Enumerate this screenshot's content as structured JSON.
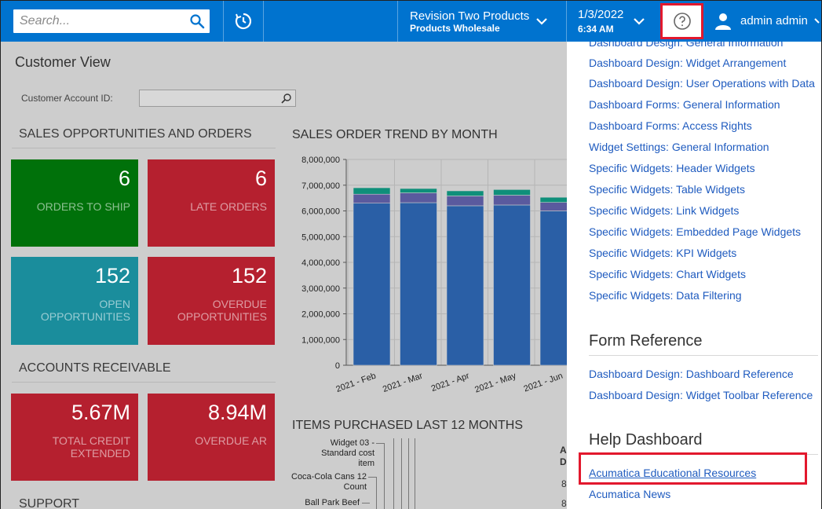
{
  "header": {
    "search_placeholder": "Search...",
    "company_name": "Revision Two Products",
    "branch_name": "Products Wholesale",
    "date": "1/3/2022",
    "time": "6:34 AM",
    "user_name": "admin admin"
  },
  "main": {
    "page_title": "Customer View",
    "account_label": "Customer Account ID:",
    "sections": {
      "sales": "SALES OPPORTUNITIES AND ORDERS",
      "receivable": "ACCOUNTS RECEIVABLE",
      "support": "SUPPORT",
      "trend": "SALES ORDER TREND BY MONTH",
      "items": "ITEMS PURCHASED LAST 12 MONTHS"
    },
    "tiles": [
      {
        "value": "6",
        "label": "ORDERS TO SHIP"
      },
      {
        "value": "6",
        "label": "LATE ORDERS"
      },
      {
        "value": "152",
        "label": "OPEN OPPORTUNITIES"
      },
      {
        "value": "152",
        "label": "OVERDUE OPPORTUNITIES"
      },
      {
        "value": "5.67M",
        "label": "TOTAL CREDIT EXTENDED"
      },
      {
        "value": "8.94M",
        "label": "OVERDUE AR"
      }
    ],
    "items_labels": [
      "Widget 03 - Standard cost item",
      "Coca-Cola Cans 12 Count",
      "Ball Park Beef"
    ],
    "partial_col_a": "A",
    "partial_col_d": "D",
    "partial_digit": "8"
  },
  "chart_data": {
    "type": "bar",
    "stacked": true,
    "title": "SALES ORDER TREND BY MONTH",
    "categories": [
      "2021 - Feb",
      "2021 - Mar",
      "2021 - Apr",
      "2021 - May",
      "2021 - Jun"
    ],
    "series": [
      {
        "values": [
          6300000,
          6320000,
          6200000,
          6230000,
          6000000
        ],
        "color": "#2a5fa6"
      },
      {
        "values": [
          350000,
          380000,
          380000,
          380000,
          330000
        ],
        "color": "#5a5a9e"
      },
      {
        "values": [
          250000,
          170000,
          200000,
          220000,
          200000
        ],
        "color": "#0f8f7a"
      }
    ],
    "y_ticks": [
      "0",
      "1,000,000",
      "2,000,000",
      "3,000,000",
      "4,000,000",
      "5,000,000",
      "6,000,000",
      "7,000,000",
      "8,000,000"
    ],
    "ylim": [
      0,
      8000000
    ],
    "grid": true
  },
  "help_panel": {
    "top_links": [
      "Dashboard Design: General Information",
      "Dashboard Design: Widget Arrangement",
      "Dashboard Design: User Operations with Data",
      "Dashboard Forms: General Information",
      "Dashboard Forms: Access Rights",
      "Widget Settings: General Information",
      "Specific Widgets: Header Widgets",
      "Specific Widgets: Table Widgets",
      "Specific Widgets: Link Widgets",
      "Specific Widgets: Embedded Page Widgets",
      "Specific Widgets: KPI Widgets",
      "Specific Widgets: Chart Widgets",
      "Specific Widgets: Data Filtering"
    ],
    "form_reference_heading": "Form Reference",
    "form_reference_links": [
      "Dashboard Design: Dashboard Reference",
      "Dashboard Design: Widget Toolbar Reference"
    ],
    "help_dashboard_heading": "Help Dashboard",
    "help_dashboard_links": [
      "Acumatica Educational Resources",
      "Acumatica News"
    ]
  },
  "colors": {
    "accent": "#0073cf",
    "highlight": "#e2182d",
    "link": "#1f5bbf"
  }
}
